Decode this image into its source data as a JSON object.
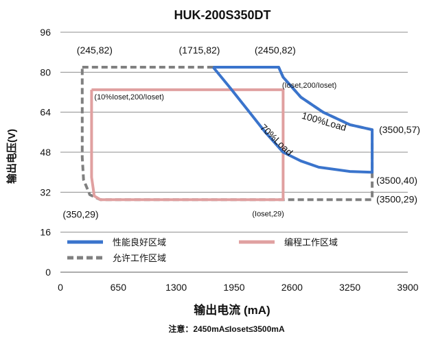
{
  "chart_data": {
    "type": "line",
    "title": "HUK-200S350DT",
    "xlabel": "输出电流 (mA)",
    "ylabel": "输出电压(V)",
    "xlim": [
      0,
      3900
    ],
    "ylim": [
      0,
      96
    ],
    "x_ticks": [
      "0",
      "650",
      "1300",
      "1950",
      "2600",
      "3250",
      "3900"
    ],
    "y_ticks": [
      "0",
      "16",
      "32",
      "48",
      "64",
      "80",
      "96"
    ],
    "grid": "horizontal",
    "note": "注意：2450mA≤Ioset≤3500mA",
    "series": [
      {
        "name": "性能良好区域",
        "color": "#3a74cc",
        "style": "solid",
        "points": [
          [
            1715,
            82
          ],
          [
            2450,
            82
          ],
          [
            2500,
            78
          ],
          [
            2700,
            70
          ],
          [
            2950,
            64
          ],
          [
            3250,
            59
          ],
          [
            3500,
            57
          ],
          [
            3500,
            40
          ],
          [
            3250,
            40.3
          ],
          [
            2900,
            42
          ],
          [
            2700,
            44.5
          ],
          [
            2500,
            48
          ],
          [
            2300,
            56
          ],
          [
            2100,
            65
          ],
          [
            1900,
            74
          ],
          [
            1715,
            82
          ]
        ]
      },
      {
        "name": "编程工作区域",
        "color": "#e0a0a0",
        "style": "solid",
        "points": [
          [
            350,
            73
          ],
          [
            2500,
            73
          ],
          [
            2500,
            29
          ],
          [
            450,
            29
          ],
          [
            380,
            30.5
          ],
          [
            350,
            38
          ],
          [
            350,
            73
          ]
        ]
      },
      {
        "name": "允许工作区域",
        "color": "#808080",
        "style": "dashed",
        "points": [
          [
            245,
            82
          ],
          [
            1715,
            82
          ],
          [
            2450,
            82
          ],
          [
            2500,
            78
          ],
          [
            2700,
            70
          ],
          [
            2950,
            64
          ],
          [
            3250,
            59
          ],
          [
            3500,
            57
          ],
          [
            3500,
            40
          ],
          [
            3500,
            29
          ],
          [
            450,
            29
          ],
          [
            330,
            31
          ],
          [
            260,
            37
          ],
          [
            245,
            46
          ],
          [
            245,
            82
          ]
        ]
      }
    ],
    "annotations": [
      {
        "text": "(245,82)",
        "x": 245,
        "y": 82
      },
      {
        "text": "(1715,82)",
        "x": 1715,
        "y": 82
      },
      {
        "text": "(2450,82)",
        "x": 2450,
        "y": 82
      },
      {
        "text": "(Ioset,200/Ioset)",
        "x": 2450,
        "y": 73
      },
      {
        "text": "(10%Ioset,200/Ioset)",
        "x": 350,
        "y": 73
      },
      {
        "text": "100%Load",
        "x": 2950,
        "y": 59
      },
      {
        "text": "70%Load",
        "x": 2400,
        "y": 52
      },
      {
        "text": "(3500,57)",
        "x": 3500,
        "y": 57
      },
      {
        "text": "(3500,40)",
        "x": 3500,
        "y": 40
      },
      {
        "text": "(3500,29)",
        "x": 3500,
        "y": 29
      },
      {
        "text": "(350,29)",
        "x": 350,
        "y": 29
      },
      {
        "text": "(Ioset,29)",
        "x": 2500,
        "y": 29
      }
    ],
    "legend": [
      {
        "name": "性能良好区域",
        "color": "#3a74cc",
        "style": "solid"
      },
      {
        "name": "编程工作区域",
        "color": "#e0a0a0",
        "style": "solid"
      },
      {
        "name": "允许工作区域",
        "color": "#808080",
        "style": "dashed"
      }
    ]
  }
}
